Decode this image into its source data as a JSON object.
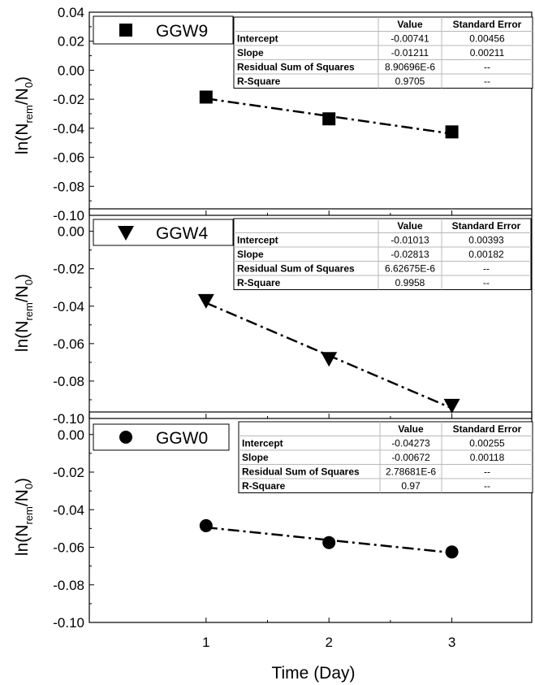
{
  "chart_data": {
    "type": "scatter",
    "x_title": "Time (Day)",
    "x_ticks": [
      "1",
      "2",
      "3"
    ],
    "xlim": [
      0.05,
      3.65
    ],
    "y_title": {
      "prefix": "ln(N",
      "sub1": "rem",
      "mid": "/N",
      "sub2": "0",
      "suffix": ")"
    },
    "table_headers": [
      "Value",
      "Standard Error"
    ],
    "panels": [
      {
        "legend": "GGW9",
        "marker": "square",
        "ylim": [
          -0.1,
          0.04
        ],
        "y_ticks": [
          "0.04",
          "0.02",
          "0.00",
          "-0.02",
          "-0.04",
          "-0.06",
          "-0.08",
          "-0.10"
        ],
        "x": [
          1,
          2,
          3
        ],
        "y": [
          -0.0185,
          -0.0335,
          -0.0425
        ],
        "fit": {
          "intercept": -0.00741,
          "slope": -0.01211
        },
        "table": [
          [
            "Intercept",
            "-0.00741",
            "0.00456"
          ],
          [
            "Slope",
            "-0.01211",
            "0.00211"
          ],
          [
            "Residual Sum of Squares",
            "8.90696E-6",
            "--"
          ],
          [
            "R-Square",
            "0.9705",
            "--"
          ]
        ]
      },
      {
        "legend": "GGW4",
        "marker": "triangle-down",
        "ylim": [
          -0.1,
          0.012
        ],
        "y_ticks": [
          "0.00",
          "-0.02",
          "-0.04",
          "-0.06",
          "-0.08",
          "-0.10"
        ],
        "x": [
          1,
          2,
          3
        ],
        "y": [
          -0.037,
          -0.068,
          -0.093
        ],
        "fit": {
          "intercept": -0.01013,
          "slope": -0.02813
        },
        "table": [
          [
            "Intercept",
            "-0.01013",
            "0.00393"
          ],
          [
            "Slope",
            "-0.02813",
            "0.00182"
          ],
          [
            "Residual Sum of Squares",
            "6.62675E-6",
            "--"
          ],
          [
            "R-Square",
            "0.9958",
            "--"
          ]
        ]
      },
      {
        "legend": "GGW0",
        "marker": "circle",
        "ylim": [
          -0.1,
          0.012
        ],
        "y_ticks": [
          "0.00",
          "-0.02",
          "-0.04",
          "-0.06",
          "-0.08",
          "-0.10"
        ],
        "x": [
          1,
          2,
          3
        ],
        "y": [
          -0.0485,
          -0.0575,
          -0.0625
        ],
        "fit": {
          "intercept": -0.04273,
          "slope": -0.00672
        },
        "table": [
          [
            "Intercept",
            "-0.04273",
            "0.00255"
          ],
          [
            "Slope",
            "-0.00672",
            "0.00118"
          ],
          [
            "Residual Sum of Squares",
            "2.78681E-6",
            "--"
          ],
          [
            "R-Square",
            "0.97",
            "--"
          ]
        ]
      }
    ]
  }
}
